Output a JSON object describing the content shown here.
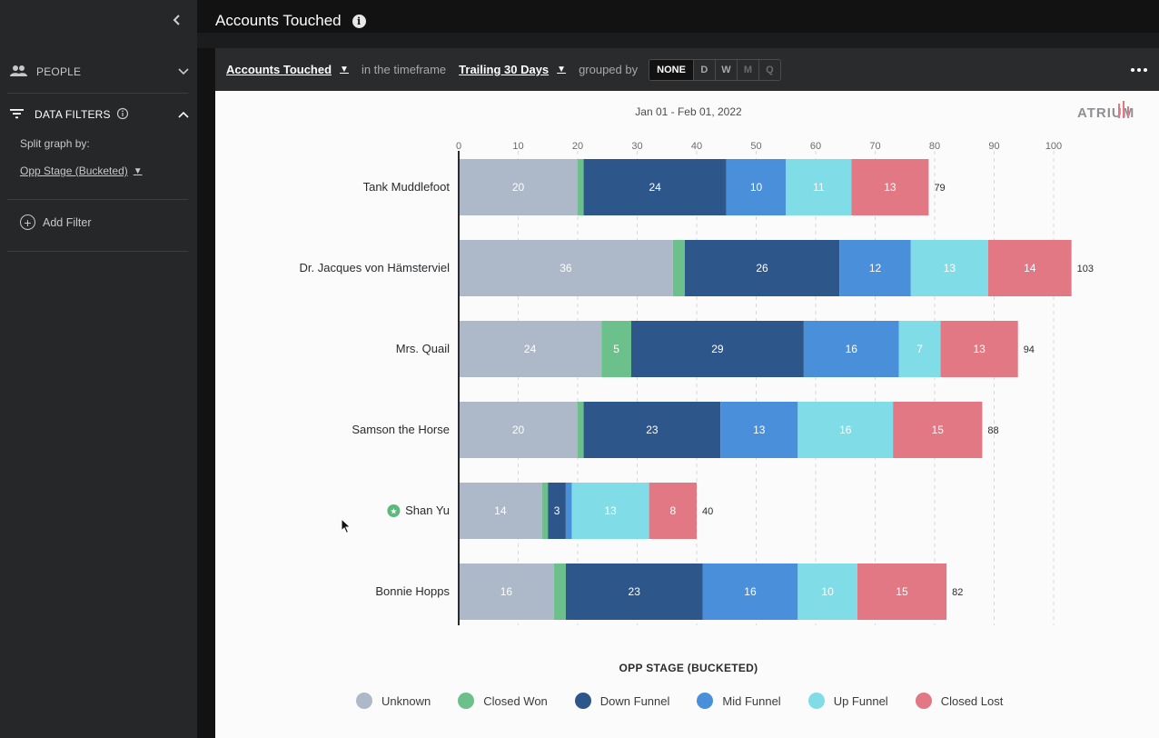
{
  "sidebar": {
    "collapse_icon": "chevron-left-icon",
    "people": {
      "label": "PEOPLE"
    },
    "filters": {
      "label": "DATA FILTERS"
    },
    "split_label": "Split graph by:",
    "split_value": "Opp Stage (Bucketed)",
    "add_filter": "Add Filter"
  },
  "header": {
    "title": "Accounts Touched"
  },
  "toolbar": {
    "metric": "Accounts Touched",
    "in_timeframe": "in the timeframe",
    "timeframe": "Trailing 30 Days",
    "grouped_by": "grouped by",
    "groups": [
      "NONE",
      "D",
      "W",
      "M",
      "Q"
    ]
  },
  "chart": {
    "date_range": "Jan 01 - Feb 01, 2022",
    "logo": "ATRIUM",
    "legend_title": "OPP STAGE (BUCKETED)"
  },
  "chart_data": {
    "type": "bar",
    "orientation": "horizontal",
    "stacked": true,
    "title": "Accounts Touched",
    "subtitle": "Jan 01 - Feb 01, 2022",
    "xlim": [
      0,
      100
    ],
    "xticks": [
      0,
      10,
      20,
      30,
      40,
      50,
      60,
      70,
      80,
      90,
      100
    ],
    "grid": true,
    "legend_title": "OPP STAGE (BUCKETED)",
    "legend_position": "bottom",
    "categories": [
      "Tank Muddlefoot",
      "Dr. Jacques von Hämsterviel",
      "Mrs. Quail",
      "Samson the Horse",
      "Shan Yu",
      "Bonnie Hopps"
    ],
    "starred": [
      "Shan Yu"
    ],
    "totals": [
      79,
      103,
      94,
      88,
      40,
      82
    ],
    "series": [
      {
        "name": "Unknown",
        "color": "#adb8c8",
        "values": [
          20,
          36,
          24,
          20,
          14,
          16
        ]
      },
      {
        "name": "Closed Won",
        "color": "#6cc08b",
        "values": [
          1,
          2,
          5,
          1,
          1,
          2
        ]
      },
      {
        "name": "Down Funnel",
        "color": "#2d568a",
        "values": [
          24,
          26,
          29,
          23,
          3,
          23
        ]
      },
      {
        "name": "Mid Funnel",
        "color": "#4a8fd9",
        "values": [
          10,
          12,
          16,
          13,
          1,
          16
        ]
      },
      {
        "name": "Up Funnel",
        "color": "#80dce7",
        "values": [
          11,
          13,
          7,
          16,
          13,
          10
        ]
      },
      {
        "name": "Closed Lost",
        "color": "#e17883",
        "values": [
          13,
          14,
          13,
          15,
          8,
          15
        ]
      }
    ]
  }
}
